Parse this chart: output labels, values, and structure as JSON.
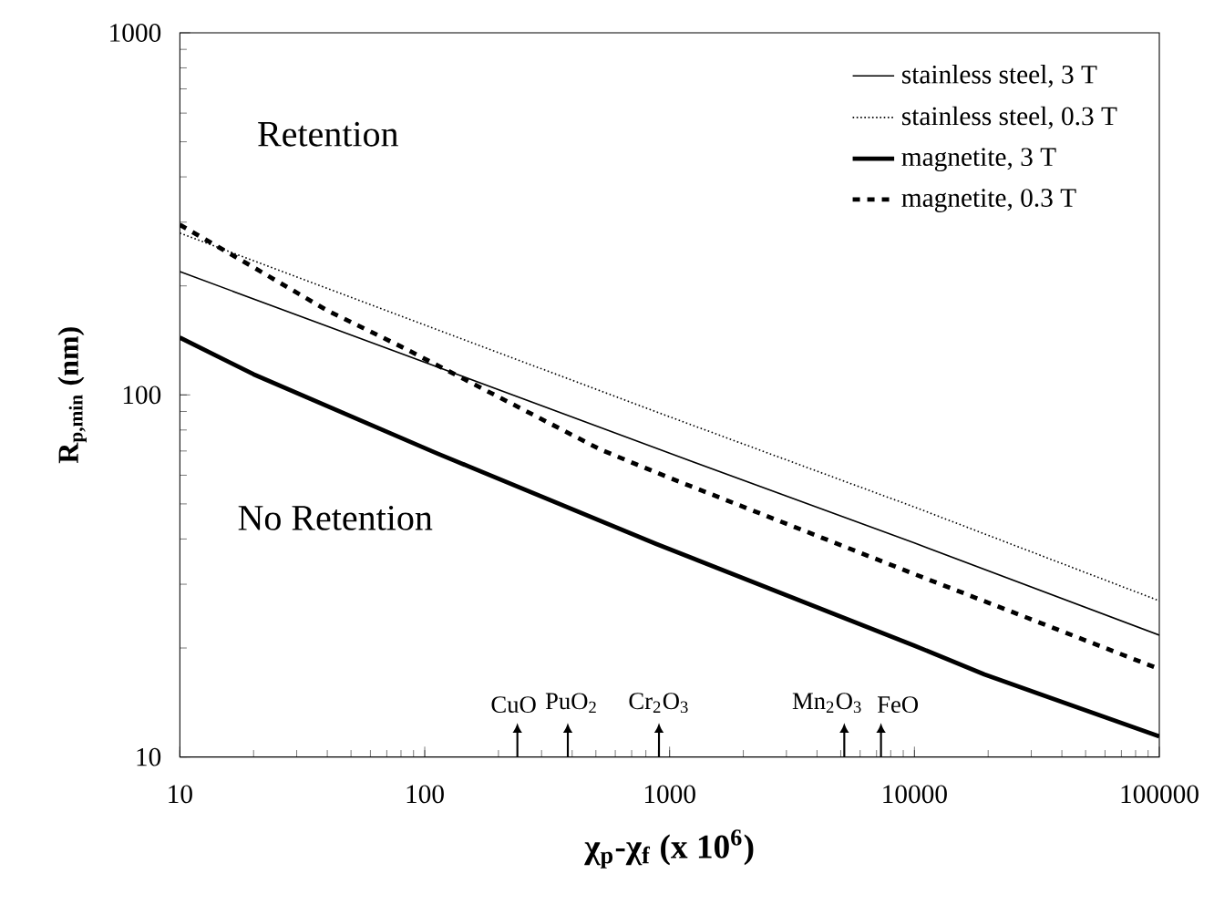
{
  "chart_data": {
    "type": "line",
    "xlabel": "χ$_{p}$-χ$_{f}$ (x 10$^{6}$)",
    "ylabel": "R$_{p,min}$ (nm)",
    "log": "xy",
    "xlim": [
      10,
      100000
    ],
    "ylim": [
      10,
      1000
    ],
    "xticks": [
      10,
      100,
      1000,
      10000,
      100000
    ],
    "yticks": [
      10,
      100,
      1000
    ],
    "legend": "top right",
    "grid": false,
    "series": [
      {
        "name": "stainless steel, 3 T",
        "color": "#000000",
        "line_style": "solid",
        "x": [
          10,
          100,
          1000,
          10000,
          100000
        ],
        "values": [
          219,
          123,
          69,
          39,
          21.7
        ]
      },
      {
        "name": "stainless steel, 0.3 T",
        "color": "#000000",
        "line_style": "dotted",
        "x": [
          10,
          100,
          1000,
          10000,
          100000
        ],
        "values": [
          280,
          156,
          87,
          49,
          27
        ]
      },
      {
        "name": "magnetite, 3 T",
        "color": "#000000",
        "line_style": "solid",
        "x": [
          10,
          20,
          112,
          880,
          10000,
          19300,
          100000
        ],
        "values": [
          144,
          114,
          69,
          38.8,
          20.3,
          16.9,
          11.4
        ]
      },
      {
        "name": "magnetite, 0.3 T",
        "color": "#000000",
        "line_style": "dashed",
        "x": [
          10,
          20,
          40,
          80,
          525,
          1000,
          10000,
          100000
        ],
        "values": [
          295,
          225,
          171,
          136,
          70.5,
          59,
          32,
          17.5
        ]
      }
    ],
    "ref_lines": [
      {
        "axis": "x",
        "value": 239,
        "label": "CuO"
      },
      {
        "axis": "x",
        "value": 384,
        "label": "PuO$_{2}$"
      },
      {
        "axis": "x",
        "value": 905,
        "label": "Cr$_{2}$O$_{3}$"
      },
      {
        "axis": "x",
        "value": 5170,
        "label": "Mn$_{2}$O$_{3}$"
      },
      {
        "axis": "x",
        "value": 7300,
        "label": "FeO"
      }
    ],
    "annotations": [
      "Retention",
      "No Retention"
    ]
  }
}
